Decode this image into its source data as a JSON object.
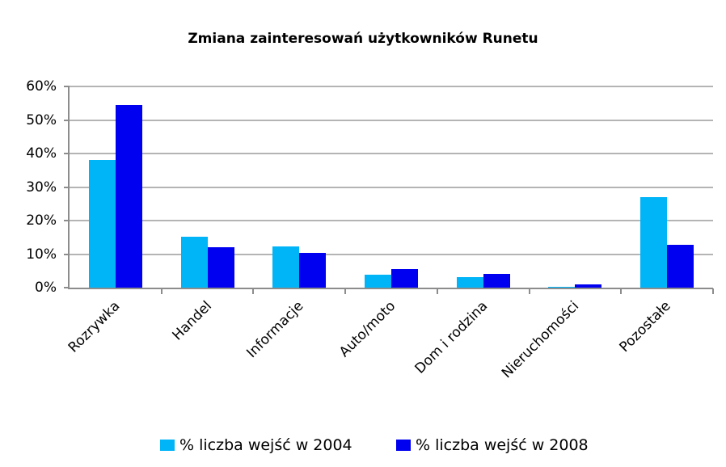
{
  "chart_data": {
    "type": "bar",
    "title": "Zmiana zainteresowań użytkowników Runetu",
    "xlabel": "",
    "ylabel": "",
    "ylim": [
      0,
      60
    ],
    "yticks": [
      "0%",
      "10%",
      "20%",
      "30%",
      "40%",
      "50%",
      "60%"
    ],
    "grid": true,
    "legend_position": "bottom",
    "categories": [
      "Rozrywka",
      "Handel",
      "Informacje",
      "Auto/moto",
      "Dom i rodzina",
      "Nieruchomości",
      "Pozostałe"
    ],
    "series": [
      {
        "name": "% liczba wejść w 2004",
        "color": "#00b4f8",
        "values": [
          38,
          15.3,
          12.4,
          3.8,
          3.1,
          0.3,
          27
        ]
      },
      {
        "name": "% liczba wejść w 2008",
        "color": "#0000f0",
        "values": [
          54.5,
          12,
          10.4,
          5.5,
          4.1,
          0.9,
          12.8
        ]
      }
    ]
  }
}
